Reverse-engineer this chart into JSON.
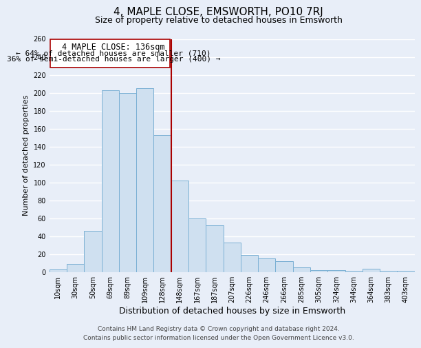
{
  "title": "4, MAPLE CLOSE, EMSWORTH, PO10 7RJ",
  "subtitle": "Size of property relative to detached houses in Emsworth",
  "xlabel": "Distribution of detached houses by size in Emsworth",
  "ylabel": "Number of detached properties",
  "categories": [
    "10sqm",
    "30sqm",
    "50sqm",
    "69sqm",
    "89sqm",
    "109sqm",
    "128sqm",
    "148sqm",
    "167sqm",
    "187sqm",
    "207sqm",
    "226sqm",
    "246sqm",
    "266sqm",
    "285sqm",
    "305sqm",
    "324sqm",
    "344sqm",
    "364sqm",
    "383sqm",
    "403sqm"
  ],
  "values": [
    3,
    9,
    46,
    203,
    200,
    205,
    153,
    102,
    60,
    52,
    33,
    19,
    15,
    12,
    5,
    2,
    2,
    1,
    4,
    1,
    1
  ],
  "bar_color": "#cfe0f0",
  "bar_edge_color": "#7ab0d4",
  "vline_x": 6.5,
  "vline_color": "#aa0000",
  "annotation_title": "4 MAPLE CLOSE: 136sqm",
  "annotation_line1": "← 64% of detached houses are smaller (710)",
  "annotation_line2": "36% of semi-detached houses are larger (400) →",
  "annotation_box_color": "#ffffff",
  "annotation_box_edge": "#aa0000",
  "ylim": [
    0,
    260
  ],
  "yticks": [
    0,
    20,
    40,
    60,
    80,
    100,
    120,
    140,
    160,
    180,
    200,
    220,
    240,
    260
  ],
  "footer_line1": "Contains HM Land Registry data © Crown copyright and database right 2024.",
  "footer_line2": "Contains public sector information licensed under the Open Government Licence v3.0.",
  "bg_color": "#e8eef8",
  "plot_bg_color": "#e8eef8",
  "grid_color": "#ffffff",
  "title_fontsize": 11,
  "subtitle_fontsize": 9,
  "xlabel_fontsize": 9,
  "ylabel_fontsize": 8,
  "tick_fontsize": 7,
  "footer_fontsize": 6.5,
  "ann_title_fontsize": 8.5,
  "ann_text_fontsize": 8
}
